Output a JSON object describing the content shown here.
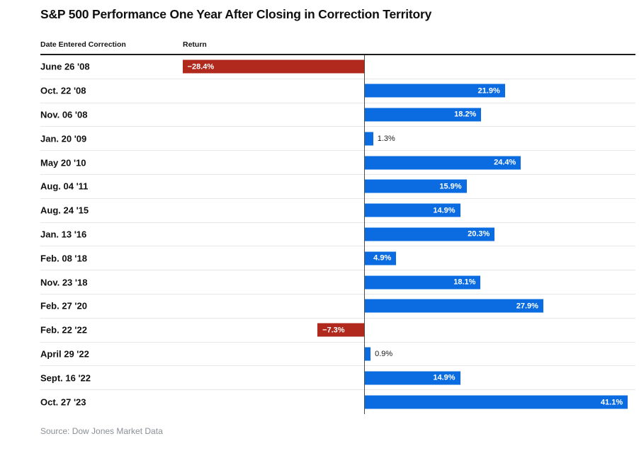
{
  "title": "S&P 500 Performance One Year After Closing in Correction Territory",
  "columns": {
    "date": "Date Entered Correction",
    "return": "Return"
  },
  "source": "Source: Dow Jones Market Data",
  "chart_data": {
    "type": "bar",
    "orientation": "horizontal",
    "title": "S&P 500 Performance One Year After Closing in Correction Territory",
    "xlabel": "Return",
    "ylabel": "Date Entered Correction",
    "categories": [
      "June 26 '08",
      "Oct. 22 '08",
      "Nov. 06 '08",
      "Jan. 20 '09",
      "May 20 '10",
      "Aug. 04 '11",
      "Aug. 24 '15",
      "Jan. 13 '16",
      "Feb. 08 '18",
      "Nov. 23 '18",
      "Feb. 27 '20",
      "Feb. 22 '22",
      "April 29 '22",
      "Sept. 16 '22",
      "Oct. 27 '23"
    ],
    "values": [
      -28.4,
      21.9,
      18.2,
      1.3,
      24.4,
      15.9,
      14.9,
      20.3,
      4.9,
      18.1,
      27.9,
      -7.3,
      0.9,
      14.9,
      41.1
    ],
    "labels": [
      "−28.4%",
      "21.9%",
      "18.2%",
      "1.3%",
      "24.4%",
      "15.9%",
      "14.9%",
      "20.3%",
      "4.9%",
      "18.1%",
      "27.9%",
      "−7.3%",
      "0.9%",
      "14.9%",
      "41.1%"
    ],
    "colors": {
      "positive": "#0a6ce0",
      "negative": "#b0291c"
    },
    "xlim": [
      -28.4,
      41.1
    ],
    "grid": false,
    "legend": false
  }
}
